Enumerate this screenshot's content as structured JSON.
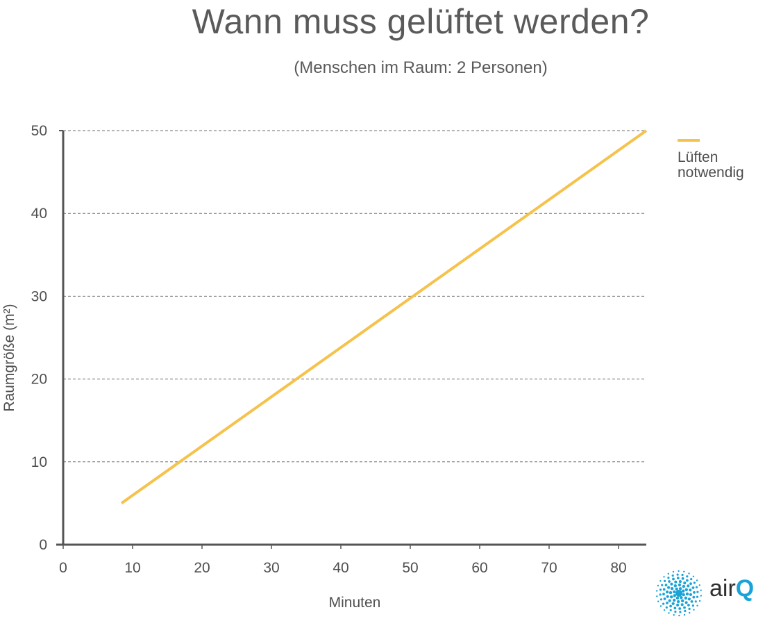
{
  "chart_data": {
    "type": "line",
    "title": "Wann muss gelüftet werden?",
    "subtitle": "(Menschen im Raum: 2 Personen)",
    "xlabel": "Minuten",
    "ylabel": "Raumgröße (m²)",
    "xlim": [
      0,
      84
    ],
    "ylim": [
      0,
      50
    ],
    "xticks": [
      0,
      10,
      20,
      30,
      40,
      50,
      60,
      70,
      80
    ],
    "yticks": [
      0,
      10,
      20,
      30,
      40,
      50
    ],
    "grid": "horizontal-dashed",
    "legend_position": "right",
    "series": [
      {
        "name": "Lüften notwendig",
        "color": "#f5c24c",
        "x": [
          8.4,
          84
        ],
        "y": [
          5,
          50
        ]
      }
    ]
  },
  "legend": {
    "label_line1": "Lüften",
    "label_line2": "notwendig"
  },
  "logo": {
    "text_air": "air",
    "text_q": "Q",
    "icon": "airq-dot-sphere-icon",
    "colors": {
      "air": "#2f2f2f",
      "q": "#1aa3d8",
      "dots": "#1aa3d8"
    }
  }
}
